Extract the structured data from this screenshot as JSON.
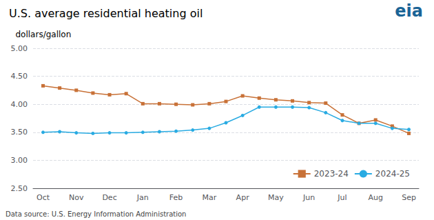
{
  "chart_data": {
    "type": "line",
    "title": "U.S. average residential heating oil",
    "ylabel": "dollars/gallon",
    "annotations": [
      {
        "text": "eia",
        "color": "#1a6496"
      },
      {
        "text": "Data source: U.S. Energy Information Administration",
        "color": "#444444"
      }
    ],
    "x": [
      0,
      0.5,
      1,
      1.5,
      2,
      2.5,
      3,
      3.5,
      4,
      4.5,
      5,
      5.5,
      6,
      6.5,
      7,
      7.5,
      8,
      8.5,
      9,
      9.5,
      10,
      10.5,
      11
    ],
    "series": [
      {
        "name": "2023-24",
        "color": "#c87137",
        "marker": "square",
        "values": [
          4.33,
          4.29,
          4.25,
          4.2,
          4.17,
          4.19,
          4.01,
          4.01,
          4.0,
          3.99,
          4.01,
          4.05,
          4.15,
          4.11,
          4.08,
          4.06,
          4.03,
          4.02,
          3.81,
          3.66,
          3.72,
          3.61,
          3.48
        ]
      },
      {
        "name": "2024-25",
        "color": "#29abe2",
        "marker": "circle",
        "values": [
          3.5,
          3.51,
          3.49,
          3.48,
          3.49,
          3.49,
          3.5,
          3.51,
          3.52,
          3.54,
          3.57,
          3.67,
          3.8,
          3.95,
          3.95,
          3.95,
          3.94,
          3.85,
          3.71,
          3.66,
          3.66,
          3.57,
          3.55
        ]
      }
    ],
    "xlim": [
      -0.3,
      11.3
    ],
    "xticks": [
      {
        "value": 0,
        "label": "Oct"
      },
      {
        "value": 1,
        "label": "Nov"
      },
      {
        "value": 2,
        "label": "Dec"
      },
      {
        "value": 3,
        "label": "Jan"
      },
      {
        "value": 4,
        "label": "Feb"
      },
      {
        "value": 5,
        "label": "Mar"
      },
      {
        "value": 6,
        "label": "Apr"
      },
      {
        "value": 7,
        "label": "May"
      },
      {
        "value": 8,
        "label": "Jun"
      },
      {
        "value": 9,
        "label": "Jul"
      },
      {
        "value": 10,
        "label": "Aug"
      },
      {
        "value": 11,
        "label": "Sep"
      }
    ],
    "ylim": [
      2.5,
      5.0
    ],
    "yticks": [
      {
        "value": 2.5,
        "label": "2.50"
      },
      {
        "value": 3.0,
        "label": "3.00"
      },
      {
        "value": 3.5,
        "label": "3.50"
      },
      {
        "value": 4.0,
        "label": "4.00"
      },
      {
        "value": 4.5,
        "label": "4.50"
      },
      {
        "value": 5.0,
        "label": "5.00"
      }
    ],
    "grid": true,
    "legend": "lower right"
  }
}
